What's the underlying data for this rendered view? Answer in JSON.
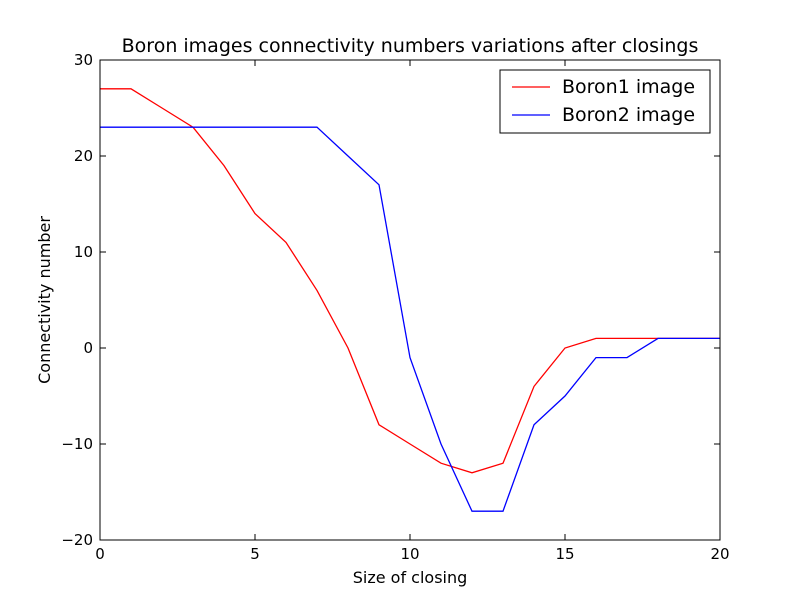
{
  "chart_data": {
    "type": "line",
    "title": "Boron images connectivity numbers variations after closings",
    "xlabel": "Size of closing",
    "ylabel": "Connectivity number",
    "xlim": [
      0,
      20
    ],
    "ylim": [
      -20,
      30
    ],
    "xticks": [
      0,
      5,
      10,
      15,
      20
    ],
    "yticks": [
      -20,
      -10,
      0,
      10,
      20,
      30
    ],
    "grid": false,
    "legend_position": "top-right",
    "x": [
      0,
      1,
      2,
      3,
      4,
      5,
      6,
      7,
      8,
      9,
      10,
      11,
      12,
      13,
      14,
      15,
      16,
      17,
      18,
      19,
      20
    ],
    "series": [
      {
        "name": "Boron1 image",
        "color": "#ff0000",
        "values": [
          27,
          27,
          25,
          23,
          19,
          14,
          11,
          6,
          0,
          -8,
          -10,
          -12,
          -13,
          -12,
          -4,
          0,
          1,
          1,
          1,
          1,
          1
        ]
      },
      {
        "name": "Boron2 image",
        "color": "#0000ff",
        "values": [
          23,
          23,
          23,
          23,
          23,
          23,
          23,
          23,
          20,
          17,
          -1,
          -10,
          -17,
          -17,
          -8,
          -5,
          -1,
          -1,
          1,
          1,
          1
        ]
      }
    ]
  }
}
